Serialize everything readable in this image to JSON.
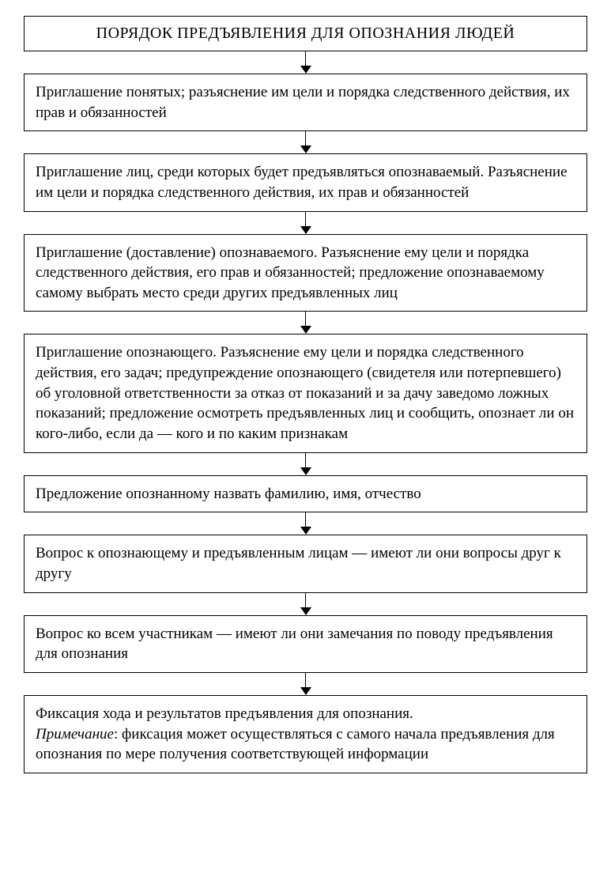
{
  "flowchart": {
    "type": "flowchart",
    "background_color": "#ffffff",
    "border_color": "#000000",
    "text_color": "#000000",
    "arrow_color": "#000000",
    "font_family": "Georgia, Times New Roman, serif",
    "title_fontsize": 20,
    "body_fontsize": 19,
    "box_padding": 12,
    "arrow_height": 28,
    "title": "ПОРЯДОК ПРЕДЪЯВЛЕНИЯ ДЛЯ ОПОЗНАНИЯ ЛЮДЕЙ",
    "steps": [
      "Приглашение понятых; разъяснение им цели и порядка следственного действия, их прав и обязанностей",
      "Приглашение лиц, среди которых будет предъявляться опознаваемый. Разъяснение им цели и порядка следственного действия, их прав и обязанностей",
      "Приглашение (доставление) опознаваемого. Разъяснение ему цели и порядка следственного действия, его прав и обязанностей; предложение опознаваемому самому выбрать место среди других предъявленных лиц",
      "Приглашение опознающего. Разъяснение ему цели и порядка следственного действия, его задач; предупреждение опознающего (свидетеля или потерпевшего) об уголовной ответственности за отказ от показаний и за дачу заведомо ложных показаний; предложение осмотреть предъявленных лиц и сообщить, опознает ли он кого-либо, если да — кого и по каким признакам",
      "Предложение опознанному назвать фамилию, имя, отчество",
      "Вопрос к опознающему и предъявленным лицам — имеют ли они вопросы друг к другу",
      "Вопрос ко всем участникам — имеют ли они замечания по поводу предъявления для опознания"
    ],
    "final_step": {
      "main": "Фиксация хода и результатов предъявления для опознания.",
      "note_label": "Примечание",
      "note_text": ": фиксация может осуществляться с самого начала предъявления для опознания по мере получения соответствующей информации"
    }
  }
}
